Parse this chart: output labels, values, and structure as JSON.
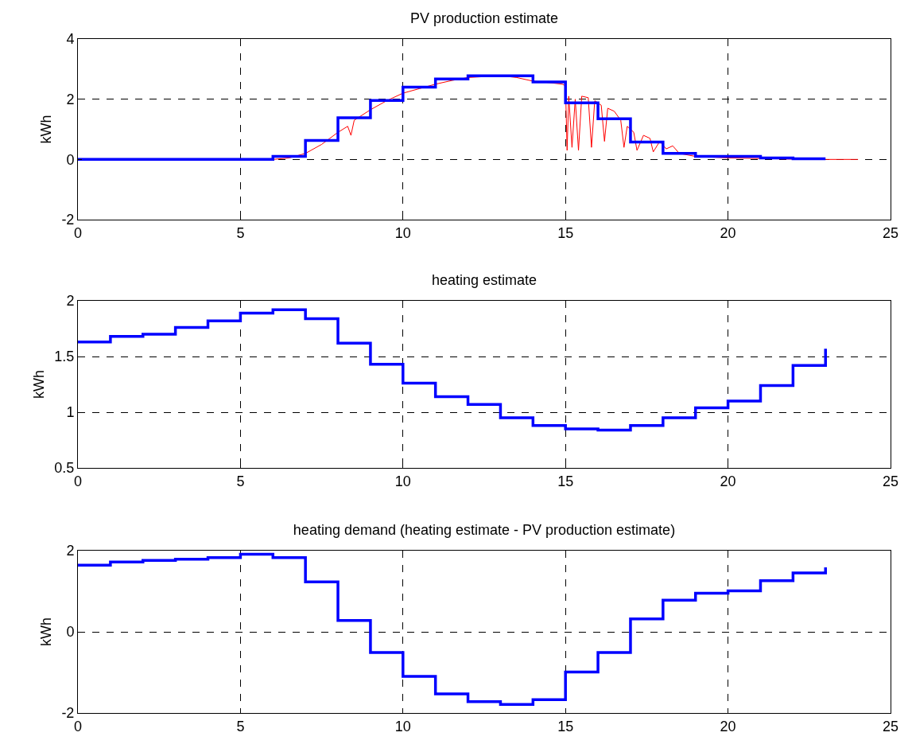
{
  "chart_data": [
    {
      "type": "step",
      "title": "PV production estimate",
      "ylabel": "kWh",
      "xlim": [
        0,
        25
      ],
      "xticks": [
        0,
        5,
        10,
        15,
        20,
        25
      ],
      "ylim": [
        -2,
        4
      ],
      "yticks": [
        -2,
        0,
        2,
        4
      ],
      "grid": true,
      "x": [
        0,
        1,
        2,
        3,
        4,
        5,
        6,
        7,
        8,
        9,
        10,
        11,
        12,
        13,
        14,
        15,
        16,
        17,
        18,
        19,
        20,
        21,
        22,
        23
      ],
      "series": [
        {
          "type": "line",
          "color": "#ff0000",
          "x": [
            0,
            6,
            6.5,
            7,
            7.5,
            8,
            8.3,
            8.4,
            8.5,
            9,
            9.5,
            10,
            10.5,
            11,
            11.5,
            12,
            13,
            13.5,
            14,
            14.5,
            14.9,
            15,
            15.05,
            15.1,
            15.2,
            15.3,
            15.4,
            15.5,
            15.7,
            15.8,
            15.9,
            16.1,
            16.2,
            16.3,
            16.5,
            16.7,
            16.8,
            16.9,
            17.1,
            17.2,
            17.4,
            17.6,
            17.7,
            17.9,
            18.1,
            18.3,
            18.5,
            19,
            20,
            21,
            22,
            23,
            24
          ],
          "values": [
            0,
            0,
            0.05,
            0.2,
            0.5,
            0.9,
            1.1,
            0.8,
            1.3,
            1.65,
            1.95,
            2.2,
            2.35,
            2.5,
            2.62,
            2.72,
            2.78,
            2.72,
            2.6,
            2.55,
            2.5,
            2.45,
            0.3,
            2.1,
            0.4,
            2,
            0.3,
            2.1,
            2.05,
            0.4,
            1.95,
            1.8,
            0.6,
            1.7,
            1.6,
            1.3,
            0.4,
            1.1,
            0.9,
            0.3,
            0.8,
            0.7,
            0.25,
            0.6,
            0.35,
            0.45,
            0.2,
            0.1,
            0.05,
            0.03,
            0.01,
            0,
            0
          ]
        },
        {
          "color": "#0000ff",
          "values": [
            0,
            0,
            0,
            0,
            0,
            0,
            0.1,
            0.63,
            1.38,
            1.96,
            2.4,
            2.67,
            2.78,
            2.78,
            2.57,
            1.88,
            1.35,
            0.58,
            0.2,
            0.1,
            0.1,
            0.05,
            0.02,
            0.02
          ]
        }
      ]
    },
    {
      "type": "step",
      "title": "heating estimate",
      "ylabel": "kWh",
      "xlim": [
        0,
        25
      ],
      "xticks": [
        0,
        5,
        10,
        15,
        20,
        25
      ],
      "ylim": [
        0.5,
        2
      ],
      "yticks": [
        0.5,
        1,
        1.5,
        2
      ],
      "grid": true,
      "x": [
        0,
        1,
        2,
        3,
        4,
        5,
        6,
        7,
        8,
        9,
        10,
        11,
        12,
        13,
        14,
        15,
        16,
        17,
        18,
        19,
        20,
        21,
        22,
        23
      ],
      "series": [
        {
          "color": "#0000ff",
          "values": [
            1.63,
            1.68,
            1.7,
            1.76,
            1.82,
            1.89,
            1.92,
            1.84,
            1.62,
            1.43,
            1.26,
            1.14,
            1.07,
            0.95,
            0.88,
            0.85,
            0.84,
            0.88,
            0.95,
            1.04,
            1.1,
            1.24,
            1.42,
            1.57
          ]
        }
      ]
    },
    {
      "type": "step",
      "title": "heating demand (heating estimate - PV production estimate)",
      "ylabel": "kWh",
      "xlim": [
        0,
        25
      ],
      "xticks": [
        0,
        5,
        10,
        15,
        20,
        25
      ],
      "ylim": [
        -2,
        2
      ],
      "yticks": [
        -2,
        0,
        2
      ],
      "grid": true,
      "x": [
        0,
        1,
        2,
        3,
        4,
        5,
        6,
        7,
        8,
        9,
        10,
        11,
        12,
        13,
        14,
        15,
        16,
        17,
        18,
        19,
        20,
        21,
        22,
        23
      ],
      "series": [
        {
          "color": "#0000ff",
          "values": [
            1.64,
            1.72,
            1.76,
            1.79,
            1.83,
            1.91,
            1.83,
            1.23,
            0.28,
            -0.51,
            -1.1,
            -1.53,
            -1.72,
            -1.79,
            -1.67,
            -0.99,
            -0.51,
            0.32,
            0.78,
            0.95,
            1.01,
            1.26,
            1.45,
            1.59
          ]
        }
      ]
    }
  ]
}
